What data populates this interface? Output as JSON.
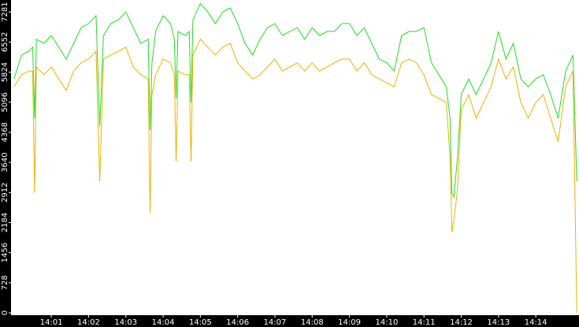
{
  "chart_data": {
    "type": "line",
    "x": [
      0,
      0.2,
      0.4,
      0.5,
      0.55,
      0.6,
      0.8,
      1.0,
      1.2,
      1.4,
      1.6,
      1.8,
      2.0,
      2.2,
      2.3,
      2.4,
      2.6,
      2.8,
      3.0,
      3.2,
      3.4,
      3.6,
      3.65,
      3.7,
      3.8,
      4.0,
      4.2,
      4.3,
      4.35,
      4.4,
      4.6,
      4.7,
      4.75,
      4.8,
      5.0,
      5.2,
      5.4,
      5.6,
      5.8,
      6.0,
      6.2,
      6.4,
      6.6,
      6.8,
      7.0,
      7.2,
      7.4,
      7.6,
      7.8,
      8.0,
      8.2,
      8.4,
      8.6,
      8.8,
      9.0,
      9.2,
      9.4,
      9.6,
      9.8,
      10.0,
      10.2,
      10.4,
      10.6,
      10.8,
      11.0,
      11.2,
      11.4,
      11.6,
      11.7,
      11.75,
      11.8,
      11.9,
      12.0,
      12.2,
      12.4,
      12.6,
      12.8,
      13.0,
      13.2,
      13.4,
      13.6,
      13.8,
      14.0,
      14.2,
      14.4,
      14.6,
      14.8,
      15.0,
      15.1
    ],
    "series": [
      {
        "color": "#22dd22",
        "values": [
          5660,
          6240,
          6330,
          6430,
          4710,
          6620,
          6520,
          6710,
          6430,
          6140,
          6520,
          6900,
          7000,
          7190,
          4520,
          6710,
          7000,
          7090,
          7280,
          6900,
          6520,
          6620,
          4420,
          6050,
          6810,
          7190,
          7000,
          6620,
          5190,
          6810,
          6710,
          6810,
          5090,
          7090,
          7480,
          7280,
          7000,
          7280,
          7380,
          7000,
          6520,
          6240,
          6620,
          6900,
          7000,
          6710,
          6810,
          6900,
          6620,
          6900,
          6710,
          6810,
          6810,
          7000,
          7000,
          6710,
          6900,
          6520,
          6140,
          6050,
          5850,
          6710,
          6810,
          6810,
          6900,
          6050,
          5760,
          5470,
          4710,
          2900,
          2800,
          3760,
          5280,
          5660,
          5280,
          5660,
          6050,
          6810,
          6140,
          6520,
          5660,
          5470,
          5660,
          5760,
          5280,
          4710,
          5850,
          6240,
          3180
        ]
      },
      {
        "color": "#f0b000",
        "values": [
          5470,
          5760,
          5850,
          5850,
          2900,
          5950,
          5760,
          5950,
          5660,
          5380,
          5850,
          6050,
          6140,
          6330,
          3180,
          6140,
          6240,
          6330,
          6430,
          5950,
          5760,
          5660,
          2420,
          5280,
          5760,
          6140,
          6050,
          5760,
          3660,
          5850,
          5760,
          5760,
          3660,
          6240,
          6620,
          6430,
          6240,
          6430,
          6520,
          6050,
          5850,
          5660,
          5760,
          5950,
          6140,
          5850,
          5950,
          6050,
          5850,
          6050,
          5850,
          5950,
          6050,
          6140,
          6140,
          5850,
          6050,
          5760,
          5660,
          5570,
          5470,
          6050,
          6140,
          6050,
          5760,
          5280,
          5190,
          5090,
          3760,
          1950,
          2230,
          2990,
          4900,
          5280,
          4710,
          5090,
          5470,
          6140,
          5660,
          5950,
          5090,
          4710,
          5090,
          5280,
          4710,
          4140,
          5470,
          5850,
          0
        ]
      }
    ],
    "xlim": [
      -0.06,
      15.16
    ],
    "xticks": [
      {
        "value": 1,
        "label": "14:01"
      },
      {
        "value": 2,
        "label": "14:02"
      },
      {
        "value": 3,
        "label": "14:03"
      },
      {
        "value": 4,
        "label": "14:04"
      },
      {
        "value": 5,
        "label": "14:05"
      },
      {
        "value": 6,
        "label": "14:06"
      },
      {
        "value": 7,
        "label": "14:07"
      },
      {
        "value": 8,
        "label": "14:08"
      },
      {
        "value": 9,
        "label": "14:09"
      },
      {
        "value": 10,
        "label": "14:10"
      },
      {
        "value": 11,
        "label": "14:11"
      },
      {
        "value": 12,
        "label": "14:12"
      },
      {
        "value": 13,
        "label": "14:13"
      },
      {
        "value": 14,
        "label": "14:14"
      }
    ],
    "ylim": [
      0,
      7570
    ],
    "yticks": [
      0,
      728,
      1456,
      2184,
      2912,
      3640,
      4368,
      5096,
      5824,
      6552,
      7281
    ]
  }
}
